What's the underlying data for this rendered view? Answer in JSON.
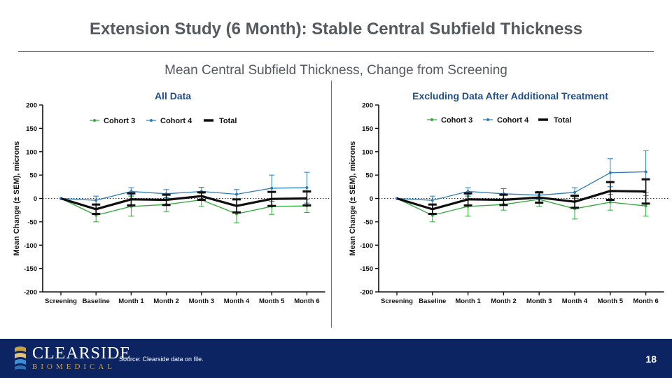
{
  "slide": {
    "title": "Extension Study (6 Month): Stable Central Subfield Thickness",
    "subtitle": "Mean Central Subfield Thickness, Change from Screening",
    "source": "Source: Clearside data on file.",
    "page_number": "18"
  },
  "brand": {
    "name": "CLEARSIDE",
    "sub": "BIOMEDICAL"
  },
  "colors": {
    "cohort3": "#2ea836",
    "cohort4": "#2b7bb9",
    "total": "#0d0d0d",
    "chart_title": "#1f4e8c",
    "rule": "#2f86b6",
    "footer": "#0c2461"
  },
  "chart_data": [
    {
      "type": "line",
      "title": "All Data",
      "ylabel": "Mean Change (± SEM), microns",
      "xlabel": "",
      "categories": [
        "Screening",
        "Baseline",
        "Month 1",
        "Month 2",
        "Month 3",
        "Month 4",
        "Month 5",
        "Month 6"
      ],
      "ylim": [
        -200,
        200
      ],
      "yticks": [
        200,
        150,
        100,
        50,
        0,
        -50,
        -100,
        -150,
        -200
      ],
      "reference_line": 0,
      "series": [
        {
          "name": "Cohort 3",
          "values": [
            0,
            -36,
            -17,
            -13,
            -3,
            -33,
            -17,
            -16
          ],
          "err": [
            0,
            14,
            21,
            15,
            14,
            19,
            17,
            14
          ]
        },
        {
          "name": "Cohort 4",
          "values": [
            0,
            -4,
            15,
            10,
            15,
            9,
            22,
            23
          ],
          "err": [
            0,
            9,
            8,
            9,
            9,
            10,
            28,
            33
          ]
        },
        {
          "name": "Total",
          "values": [
            0,
            -23,
            -2,
            -3,
            5,
            -16,
            -1,
            0
          ],
          "err": [
            0,
            10,
            13,
            11,
            8,
            14,
            15,
            15
          ]
        }
      ]
    },
    {
      "type": "line",
      "title": "Excluding Data After Additional Treatment",
      "ylabel": "Mean Change (± SEM), microns",
      "xlabel": "",
      "categories": [
        "Screening",
        "Baseline",
        "Month 1",
        "Month 2",
        "Month 3",
        "Month 4",
        "Month 5",
        "Month 6"
      ],
      "ylim": [
        -200,
        200
      ],
      "yticks": [
        200,
        150,
        100,
        50,
        0,
        -50,
        -100,
        -150,
        -200
      ],
      "reference_line": 0,
      "series": [
        {
          "name": "Cohort 3",
          "values": [
            0,
            -36,
            -17,
            -13,
            -2,
            -22,
            -8,
            -16
          ],
          "err": [
            0,
            14,
            21,
            12,
            15,
            22,
            17,
            22
          ]
        },
        {
          "name": "Cohort 4",
          "values": [
            0,
            -4,
            15,
            10,
            7,
            13,
            55,
            57
          ],
          "err": [
            0,
            9,
            8,
            11,
            8,
            10,
            30,
            45
          ]
        },
        {
          "name": "Total",
          "values": [
            0,
            -23,
            -2,
            -3,
            2,
            -7,
            16,
            15
          ],
          "err": [
            0,
            10,
            13,
            11,
            11,
            13,
            19,
            26
          ]
        }
      ]
    }
  ]
}
